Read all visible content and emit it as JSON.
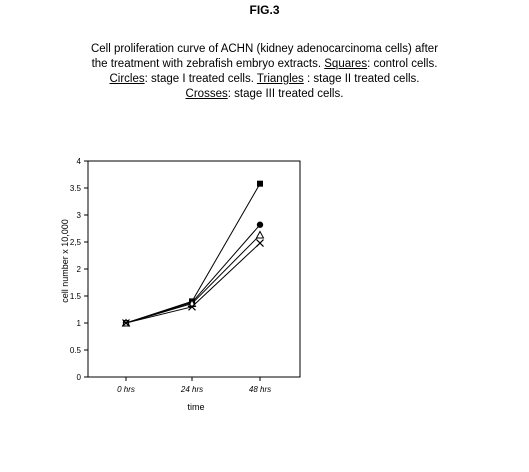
{
  "figure": {
    "label": "FIG.3",
    "caption": {
      "line1": "Cell proliferation curve of ACHN (kidney adenocarcinoma cells) after",
      "line2_a": "the treatment with zebrafish embryo extracts. ",
      "line2_squares": "Squares",
      "line2_b": ": control cells.",
      "line3_circles": "Circles",
      "line3_a": ": stage I treated cells. ",
      "line3_triangles": "Triangles",
      "line3_b": " : stage II treated cells.",
      "line4_crosses": "Crosses",
      "line4_a": ": stage III treated cells."
    }
  },
  "chart_data": {
    "type": "line",
    "categories": [
      "0 hrs",
      "24 hrs",
      "48 hrs"
    ],
    "xlabel": "time",
    "ylabel": "cell number x 10,000",
    "ylim": [
      0,
      4
    ],
    "yticks": [
      "0",
      "0.5",
      "1",
      "1.5",
      "2",
      "2,5",
      "3",
      "3.5",
      "4"
    ],
    "grid": false,
    "legend": "none",
    "series": [
      {
        "marker": "square",
        "values": [
          1.0,
          1.4,
          3.58
        ]
      },
      {
        "marker": "circle",
        "values": [
          1.0,
          1.38,
          2.82
        ]
      },
      {
        "marker": "triangle",
        "values": [
          1.0,
          1.36,
          2.63
        ]
      },
      {
        "marker": "cross",
        "values": [
          1.0,
          1.3,
          2.48
        ]
      }
    ]
  }
}
